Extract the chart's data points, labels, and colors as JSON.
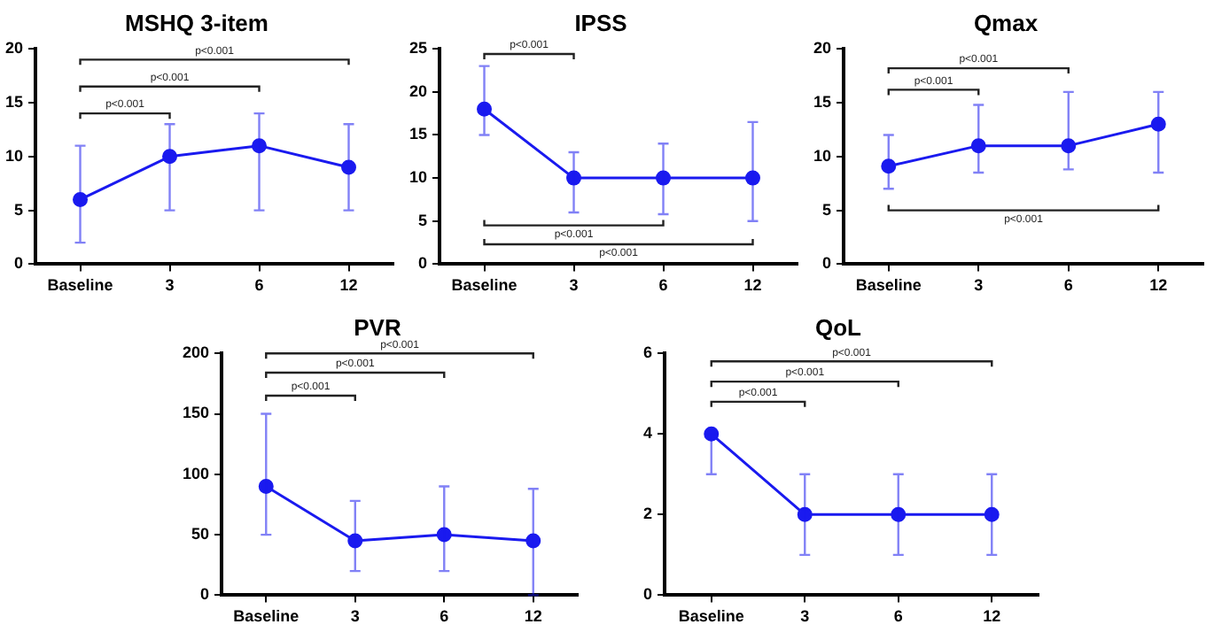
{
  "chart_data": [
    {
      "type": "line",
      "title": "MSHQ 3-item",
      "categories": [
        "Baseline",
        "3",
        "6",
        "12"
      ],
      "series": [
        {
          "color": "#1a1aef",
          "values": [
            6,
            10,
            11,
            9
          ],
          "errors": [
            [
              2,
              11
            ],
            [
              5,
              13
            ],
            [
              5,
              14
            ],
            [
              5,
              13
            ]
          ]
        }
      ],
      "ylim": [
        0,
        20
      ],
      "yticks": [
        0,
        5,
        10,
        15,
        20
      ],
      "grid": false,
      "legend": false,
      "marker": "circle",
      "annotations": [
        "p<0.001",
        "p<0.001",
        "p<0.001"
      ]
    },
    {
      "type": "line",
      "title": "IPSS",
      "categories": [
        "Baseline",
        "3",
        "6",
        "12"
      ],
      "series": [
        {
          "color": "#1a1aef",
          "values": [
            18,
            10,
            10,
            10
          ],
          "errors": [
            [
              15,
              23
            ],
            [
              6,
              13
            ],
            [
              5.8,
              14
            ],
            [
              5,
              16.5
            ]
          ]
        }
      ],
      "ylim": [
        0,
        25
      ],
      "yticks": [
        0,
        5,
        10,
        15,
        20,
        25
      ],
      "grid": false,
      "legend": false,
      "marker": "circle",
      "annotations": [
        "p<0.001",
        "p<0.001",
        "p<0.001"
      ]
    },
    {
      "type": "line",
      "title": "Qmax",
      "categories": [
        "Baseline",
        "3",
        "6",
        "12"
      ],
      "series": [
        {
          "color": "#1a1aef",
          "values": [
            9.1,
            11,
            11,
            13
          ],
          "errors": [
            [
              7,
              12
            ],
            [
              8.5,
              14.8
            ],
            [
              8.8,
              16
            ],
            [
              8.5,
              16
            ]
          ]
        }
      ],
      "ylim": [
        0,
        20
      ],
      "yticks": [
        0,
        5,
        10,
        15,
        20
      ],
      "grid": false,
      "legend": false,
      "marker": "circle",
      "annotations": [
        "p<0.001",
        "p<0.001",
        "p<0.001"
      ]
    },
    {
      "type": "line",
      "title": "PVR",
      "categories": [
        "Baseline",
        "3",
        "6",
        "12"
      ],
      "series": [
        {
          "color": "#1a1aef",
          "values": [
            90,
            45,
            50,
            45
          ],
          "errors": [
            [
              50,
              150
            ],
            [
              20,
              78
            ],
            [
              20,
              90
            ],
            [
              0,
              88
            ]
          ]
        }
      ],
      "ylim": [
        0,
        200
      ],
      "yticks": [
        0,
        50,
        100,
        150,
        200
      ],
      "grid": false,
      "legend": false,
      "marker": "circle",
      "annotations": [
        "p<0.001",
        "p<0.001",
        "p<0.001"
      ]
    },
    {
      "type": "line",
      "title": "QoL",
      "categories": [
        "Baseline",
        "3",
        "6",
        "12"
      ],
      "series": [
        {
          "color": "#1a1aef",
          "values": [
            4,
            2,
            2,
            2
          ],
          "errors": [
            [
              3,
              4
            ],
            [
              1,
              3
            ],
            [
              1,
              3
            ],
            [
              1,
              3
            ]
          ]
        }
      ],
      "ylim": [
        0,
        6
      ],
      "yticks": [
        0,
        2,
        4,
        6
      ],
      "grid": false,
      "legend": false,
      "marker": "circle",
      "annotations": [
        "p<0.001",
        "p<0.001",
        "p<0.001"
      ]
    }
  ]
}
